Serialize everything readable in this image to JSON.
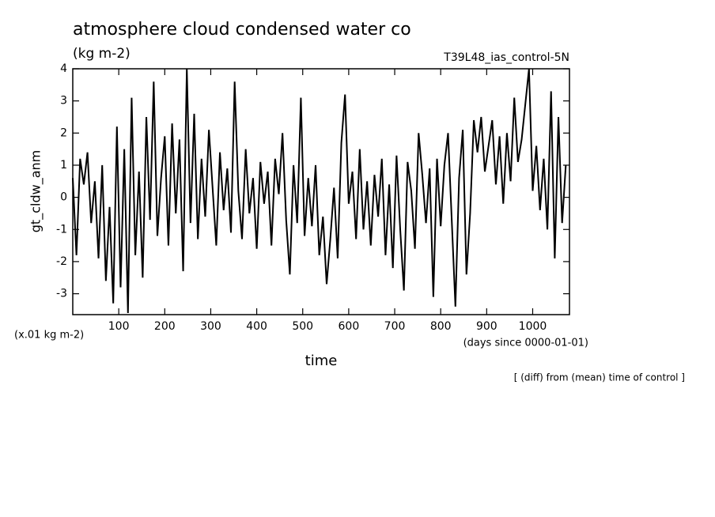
{
  "chart_data": {
    "type": "line",
    "title": "atmosphere cloud condensed water co",
    "subtitle": "(kg m-2)",
    "run_label": "T39L48_ias_control-5N",
    "ylabel": "gt_cldw_anm",
    "y_units": "(x.01 kg m-2)",
    "xlabel": "time",
    "x_units": "(days since 0000-01-01)",
    "note": "[ (diff) from (mean) time of control ]",
    "color": "#000000",
    "xlim": [
      0,
      1080
    ],
    "ylim": [
      -3.65,
      4
    ],
    "xticks": [
      100,
      200,
      300,
      400,
      500,
      600,
      700,
      800,
      900,
      1000
    ],
    "yticks": [
      -3,
      -2,
      -1,
      0,
      1,
      2,
      3,
      4
    ],
    "x": [
      0,
      8,
      16,
      24,
      32,
      40,
      48,
      56,
      64,
      72,
      80,
      88,
      96,
      104,
      112,
      120,
      128,
      136,
      144,
      152,
      160,
      168,
      176,
      184,
      192,
      200,
      208,
      216,
      224,
      232,
      240,
      248,
      256,
      264,
      272,
      280,
      288,
      296,
      304,
      312,
      320,
      328,
      336,
      344,
      352,
      360,
      368,
      376,
      384,
      392,
      400,
      408,
      416,
      424,
      432,
      440,
      448,
      456,
      464,
      472,
      480,
      488,
      496,
      504,
      512,
      520,
      528,
      536,
      544,
      552,
      560,
      568,
      576,
      584,
      592,
      600,
      608,
      616,
      624,
      632,
      640,
      648,
      656,
      664,
      672,
      680,
      688,
      696,
      704,
      712,
      720,
      728,
      736,
      744,
      752,
      760,
      768,
      776,
      784,
      792,
      800,
      808,
      816,
      824,
      832,
      840,
      848,
      856,
      864,
      872,
      880,
      888,
      896,
      904,
      912,
      920,
      928,
      936,
      944,
      952,
      960,
      968,
      976,
      984,
      992,
      1000,
      1008,
      1016,
      1024,
      1032,
      1040,
      1048,
      1056,
      1064,
      1072
    ],
    "values": [
      0.6,
      -1.8,
      1.2,
      0.4,
      1.4,
      -0.8,
      0.5,
      -1.9,
      1.0,
      -2.6,
      -0.3,
      -3.3,
      2.2,
      -2.8,
      1.5,
      -3.6,
      3.1,
      -1.8,
      0.8,
      -2.5,
      2.5,
      -0.7,
      3.6,
      -1.2,
      0.6,
      1.9,
      -1.5,
      2.3,
      -0.5,
      1.8,
      -2.3,
      4.0,
      -0.8,
      2.6,
      -1.3,
      1.2,
      -0.6,
      2.1,
      0.3,
      -1.5,
      1.4,
      -0.4,
      0.9,
      -1.1,
      3.6,
      0.2,
      -1.3,
      1.5,
      -0.5,
      0.6,
      -1.6,
      1.1,
      -0.2,
      0.8,
      -1.5,
      1.2,
      0.1,
      2.0,
      -0.7,
      -2.4,
      1.0,
      -0.8,
      3.1,
      -1.2,
      0.6,
      -0.9,
      1.0,
      -1.8,
      -0.6,
      -2.7,
      -1.3,
      0.3,
      -1.9,
      1.7,
      3.2,
      -0.2,
      0.8,
      -1.3,
      1.5,
      -1.0,
      0.5,
      -1.5,
      0.7,
      -0.6,
      1.2,
      -1.8,
      0.4,
      -2.2,
      1.3,
      -1.0,
      -2.9,
      1.1,
      0.2,
      -1.6,
      2.0,
      0.7,
      -0.8,
      0.9,
      -3.1,
      1.2,
      -0.9,
      1.0,
      2.0,
      -0.7,
      -3.4,
      0.6,
      2.1,
      -2.4,
      -0.5,
      2.4,
      1.4,
      2.5,
      0.8,
      1.6,
      2.4,
      0.4,
      1.9,
      -0.2,
      2.0,
      0.5,
      3.1,
      1.1,
      1.8,
      2.9,
      4.0,
      0.2,
      1.6,
      -0.4,
      1.2,
      -1.0,
      3.3,
      -1.9,
      2.5,
      -0.8,
      1.0
    ]
  }
}
